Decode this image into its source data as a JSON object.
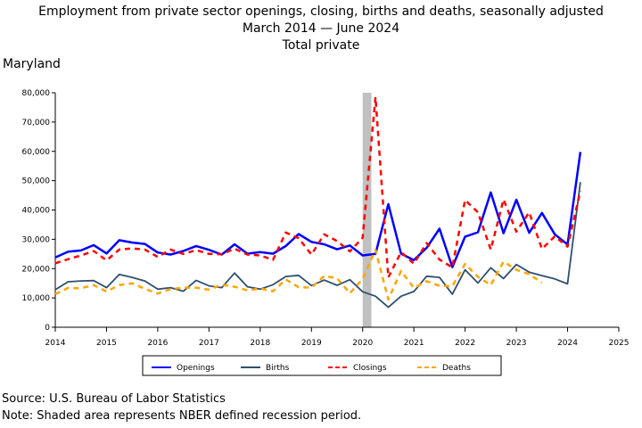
{
  "header": {
    "title": "Employment from private sector openings, closing, births and deaths, seasonally adjusted",
    "date_range": "March 2014 — June 2024",
    "subtitle": "Total private",
    "region": "Maryland"
  },
  "footer": {
    "source": "Source: U.S. Bureau of Labor Statistics",
    "note": "Note: Shaded area represents NBER defined recession period."
  },
  "chart_data": {
    "type": "line",
    "title": "Employment from private sector openings, closing, births and deaths, seasonally adjusted",
    "xlim": [
      2014,
      2025
    ],
    "ylim": [
      0,
      80000
    ],
    "x_ticks": [
      2014,
      2015,
      2016,
      2017,
      2018,
      2019,
      2020,
      2021,
      2022,
      2023,
      2024,
      2025
    ],
    "y_ticks": [
      0,
      10000,
      20000,
      30000,
      40000,
      50000,
      60000,
      70000,
      80000
    ],
    "y_tick_labels": [
      "0",
      "10,000",
      "20,000",
      "30,000",
      "40,000",
      "50,000",
      "60,000",
      "70,000",
      "80,000"
    ],
    "grid": false,
    "legend": "bottom",
    "recession": {
      "start": 2020.0,
      "end": 2020.17,
      "color": "#c0c0c0"
    },
    "x": [
      2014.0,
      2014.25,
      2014.5,
      2014.75,
      2015.0,
      2015.25,
      2015.5,
      2015.75,
      2016.0,
      2016.25,
      2016.5,
      2016.75,
      2017.0,
      2017.25,
      2017.5,
      2017.75,
      2018.0,
      2018.25,
      2018.5,
      2018.75,
      2019.0,
      2019.25,
      2019.5,
      2019.75,
      2020.0,
      2020.25,
      2020.5,
      2020.75,
      2021.0,
      2021.25,
      2021.5,
      2021.75,
      2022.0,
      2022.25,
      2022.5,
      2022.75,
      2023.0,
      2023.25,
      2023.5,
      2023.75,
      2024.0,
      2024.25
    ],
    "series": [
      {
        "name": "Openings",
        "color": "#0000ff",
        "dash": "",
        "width": 2.5,
        "values": [
          23800,
          25800,
          26200,
          28000,
          25200,
          29700,
          28900,
          28400,
          25500,
          24800,
          26000,
          27700,
          26400,
          24800,
          28300,
          25100,
          25600,
          25100,
          27700,
          31800,
          29100,
          28300,
          26600,
          27900,
          24500,
          25000,
          42000,
          25100,
          22900,
          27100,
          33600,
          20500,
          30900,
          32400,
          46000,
          32100,
          43500,
          32200,
          39000,
          31700,
          28200,
          59800
        ]
      },
      {
        "name": "Births",
        "color": "#2f4f70",
        "dash": "",
        "width": 1.8,
        "values": [
          12800,
          15500,
          15800,
          15900,
          13500,
          18000,
          17000,
          15800,
          13000,
          13500,
          12300,
          16000,
          14100,
          13500,
          18500,
          13800,
          13000,
          14500,
          17300,
          17700,
          14200,
          16100,
          14300,
          16200,
          12100,
          10600,
          6800,
          10600,
          12200,
          17400,
          17000,
          11300,
          19600,
          15100,
          20300,
          16600,
          21400,
          18800,
          17600,
          16500,
          14800,
          49500
        ]
      },
      {
        "name": "Closings",
        "color": "#ff0000",
        "dash": "6,5",
        "width": 2.5,
        "values": [
          21800,
          23200,
          24500,
          26000,
          22800,
          26500,
          26900,
          26500,
          24000,
          26500,
          25000,
          26300,
          25000,
          24900,
          26800,
          24800,
          24500,
          23000,
          32300,
          30400,
          24800,
          31700,
          29400,
          25900,
          30500,
          78500,
          17000,
          25600,
          21700,
          28700,
          23100,
          20400,
          43400,
          39200,
          26500,
          43600,
          32600,
          39200,
          26700,
          31000,
          27500,
          46500
        ]
      },
      {
        "name": "Deaths",
        "color": "#ffa500",
        "dash": "6,5",
        "width": 2.5,
        "values": [
          11300,
          13400,
          13300,
          14400,
          12200,
          14400,
          15000,
          13100,
          11500,
          13000,
          13500,
          13500,
          12800,
          14500,
          13800,
          12600,
          13200,
          12300,
          16300,
          13700,
          13500,
          17500,
          16700,
          11600,
          16500,
          26400,
          9500,
          19200,
          13400,
          15700,
          14100,
          14000,
          21600,
          17200,
          14400,
          22400,
          19600,
          18100,
          15200,
          null,
          null,
          null
        ]
      }
    ]
  }
}
